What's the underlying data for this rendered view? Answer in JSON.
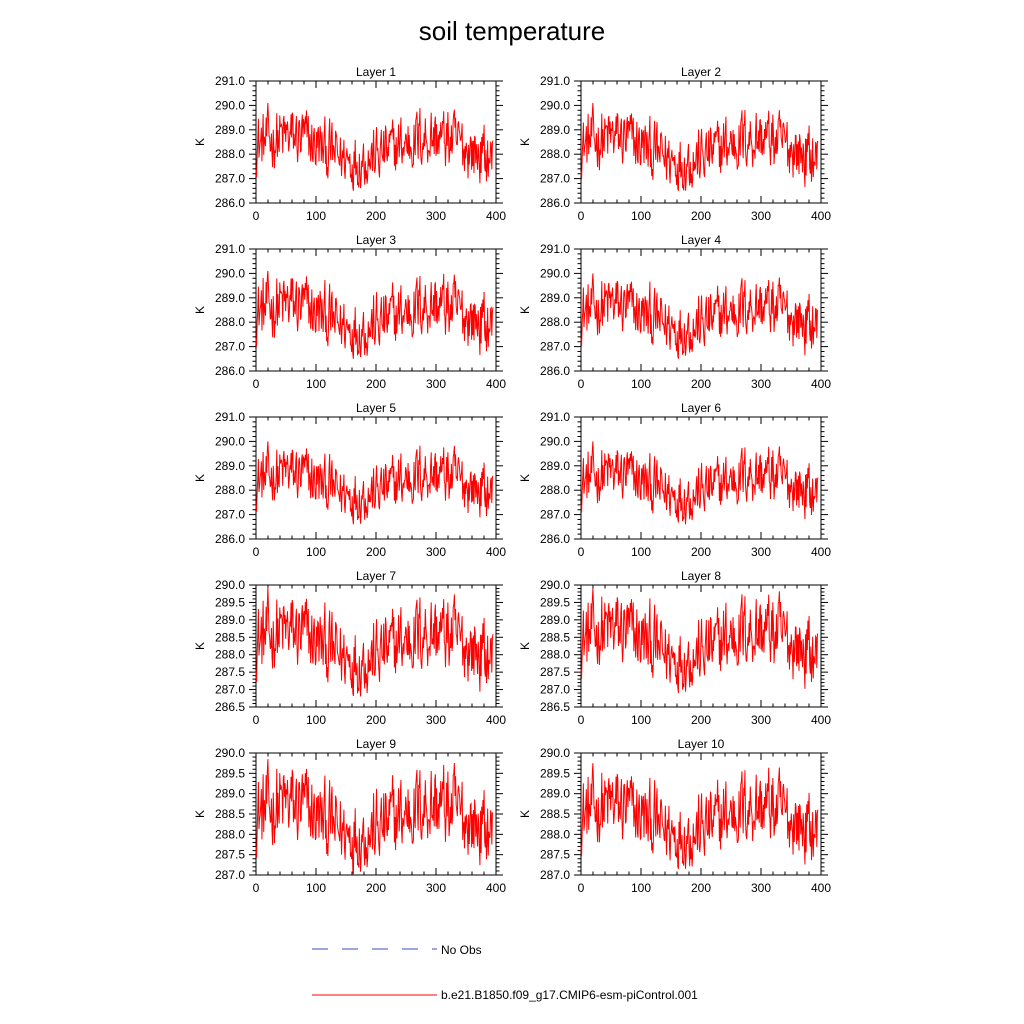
{
  "figure": {
    "title": "soil temperature"
  },
  "colors": {
    "series": "#ff0000",
    "obs": "#3b4cc0",
    "axis": "#000000"
  },
  "legend": {
    "entries": [
      {
        "label": "No Obs",
        "style": "dashed",
        "color": "#3b4cc0"
      },
      {
        "label": "b.e21.B1850.f09_g17.CMIP6-esm-piControl.001",
        "style": "solid",
        "color": "#ff0000"
      }
    ]
  },
  "chart_data": [
    {
      "type": "line",
      "title": "Layer 1",
      "ylabel": "K",
      "xlim": [
        0,
        400
      ],
      "xticks": [
        0,
        100,
        200,
        300,
        400
      ],
      "ylim": [
        286.0,
        291.0
      ],
      "yticks": [
        286.0,
        287.0,
        288.0,
        289.0,
        290.0,
        291.0
      ],
      "ytick_labels": [
        "286.0",
        "287.0",
        "288.0",
        "289.0",
        "290.0",
        "291.0"
      ],
      "n_points": 400,
      "mean": 288.3,
      "min": 286.5,
      "max": 290.1,
      "series": [
        {
          "name": "b.e21.B1850.f09_g17.CMIP6-esm-piControl.001",
          "color": "#ff0000"
        }
      ]
    },
    {
      "type": "line",
      "title": "Layer 2",
      "ylabel": "K",
      "xlim": [
        0,
        400
      ],
      "xticks": [
        0,
        100,
        200,
        300,
        400
      ],
      "ylim": [
        286.0,
        291.0
      ],
      "yticks": [
        286.0,
        287.0,
        288.0,
        289.0,
        290.0,
        291.0
      ],
      "ytick_labels": [
        "286.0",
        "287.0",
        "288.0",
        "289.0",
        "290.0",
        "291.0"
      ],
      "n_points": 400,
      "mean": 288.3,
      "min": 286.5,
      "max": 290.1,
      "series": [
        {
          "name": "b.e21.B1850.f09_g17.CMIP6-esm-piControl.001",
          "color": "#ff0000"
        }
      ]
    },
    {
      "type": "line",
      "title": "Layer 3",
      "ylabel": "K",
      "xlim": [
        0,
        400
      ],
      "xticks": [
        0,
        100,
        200,
        300,
        400
      ],
      "ylim": [
        286.0,
        291.0
      ],
      "yticks": [
        286.0,
        287.0,
        288.0,
        289.0,
        290.0,
        291.0
      ],
      "ytick_labels": [
        "286.0",
        "287.0",
        "288.0",
        "289.0",
        "290.0",
        "291.0"
      ],
      "n_points": 400,
      "mean": 288.3,
      "min": 286.5,
      "max": 290.1,
      "series": [
        {
          "name": "b.e21.B1850.f09_g17.CMIP6-esm-piControl.001",
          "color": "#ff0000"
        }
      ]
    },
    {
      "type": "line",
      "title": "Layer 4",
      "ylabel": "K",
      "xlim": [
        0,
        400
      ],
      "xticks": [
        0,
        100,
        200,
        300,
        400
      ],
      "ylim": [
        286.0,
        291.0
      ],
      "yticks": [
        286.0,
        287.0,
        288.0,
        289.0,
        290.0,
        291.0
      ],
      "ytick_labels": [
        "286.0",
        "287.0",
        "288.0",
        "289.0",
        "290.0",
        "291.0"
      ],
      "n_points": 400,
      "mean": 288.3,
      "min": 286.5,
      "max": 290.0,
      "series": [
        {
          "name": "b.e21.B1850.f09_g17.CMIP6-esm-piControl.001",
          "color": "#ff0000"
        }
      ]
    },
    {
      "type": "line",
      "title": "Layer 5",
      "ylabel": "K",
      "xlim": [
        0,
        400
      ],
      "xticks": [
        0,
        100,
        200,
        300,
        400
      ],
      "ylim": [
        286.0,
        291.0
      ],
      "yticks": [
        286.0,
        287.0,
        288.0,
        289.0,
        290.0,
        291.0
      ],
      "ytick_labels": [
        "286.0",
        "287.0",
        "288.0",
        "289.0",
        "290.0",
        "291.0"
      ],
      "n_points": 400,
      "mean": 288.3,
      "min": 286.6,
      "max": 290.0,
      "series": [
        {
          "name": "b.e21.B1850.f09_g17.CMIP6-esm-piControl.001",
          "color": "#ff0000"
        }
      ]
    },
    {
      "type": "line",
      "title": "Layer 6",
      "ylabel": "K",
      "xlim": [
        0,
        400
      ],
      "xticks": [
        0,
        100,
        200,
        300,
        400
      ],
      "ylim": [
        286.0,
        291.0
      ],
      "yticks": [
        286.0,
        287.0,
        288.0,
        289.0,
        290.0,
        291.0
      ],
      "ytick_labels": [
        "286.0",
        "287.0",
        "288.0",
        "289.0",
        "290.0",
        "291.0"
      ],
      "n_points": 400,
      "mean": 288.3,
      "min": 286.6,
      "max": 290.0,
      "series": [
        {
          "name": "b.e21.B1850.f09_g17.CMIP6-esm-piControl.001",
          "color": "#ff0000"
        }
      ]
    },
    {
      "type": "line",
      "title": "Layer 7",
      "ylabel": "K",
      "xlim": [
        0,
        400
      ],
      "xticks": [
        0,
        100,
        200,
        300,
        400
      ],
      "ylim": [
        286.5,
        290.0
      ],
      "yticks": [
        286.5,
        287.0,
        287.5,
        288.0,
        288.5,
        289.0,
        289.5,
        290.0
      ],
      "ytick_labels": [
        "286.5",
        "287.0",
        "287.5",
        "288.0",
        "288.5",
        "289.0",
        "289.5",
        "290.0"
      ],
      "n_points": 400,
      "mean": 288.3,
      "min": 286.8,
      "max": 289.95,
      "series": [
        {
          "name": "b.e21.B1850.f09_g17.CMIP6-esm-piControl.001",
          "color": "#ff0000"
        }
      ]
    },
    {
      "type": "line",
      "title": "Layer 8",
      "ylabel": "K",
      "xlim": [
        0,
        400
      ],
      "xticks": [
        0,
        100,
        200,
        300,
        400
      ],
      "ylim": [
        286.5,
        290.0
      ],
      "yticks": [
        286.5,
        287.0,
        287.5,
        288.0,
        288.5,
        289.0,
        289.5,
        290.0
      ],
      "ytick_labels": [
        "286.5",
        "287.0",
        "287.5",
        "288.0",
        "288.5",
        "289.0",
        "289.5",
        "290.0"
      ],
      "n_points": 400,
      "mean": 288.35,
      "min": 286.9,
      "max": 289.9,
      "series": [
        {
          "name": "b.e21.B1850.f09_g17.CMIP6-esm-piControl.001",
          "color": "#ff0000"
        }
      ]
    },
    {
      "type": "line",
      "title": "Layer 9",
      "ylabel": "K",
      "xlim": [
        0,
        400
      ],
      "xticks": [
        0,
        100,
        200,
        300,
        400
      ],
      "ylim": [
        287.0,
        290.0
      ],
      "yticks": [
        287.0,
        287.5,
        288.0,
        288.5,
        289.0,
        289.5,
        290.0
      ],
      "ytick_labels": [
        "287.0",
        "287.5",
        "288.0",
        "288.5",
        "289.0",
        "289.5",
        "290.0"
      ],
      "n_points": 400,
      "mean": 288.4,
      "min": 287.0,
      "max": 289.85,
      "series": [
        {
          "name": "b.e21.B1850.f09_g17.CMIP6-esm-piControl.001",
          "color": "#ff0000"
        }
      ]
    },
    {
      "type": "line",
      "title": "Layer 10",
      "ylabel": "K",
      "xlim": [
        0,
        400
      ],
      "xticks": [
        0,
        100,
        200,
        300,
        400
      ],
      "ylim": [
        287.0,
        290.0
      ],
      "yticks": [
        287.0,
        287.5,
        288.0,
        288.5,
        289.0,
        289.5,
        290.0
      ],
      "ytick_labels": [
        "287.0",
        "287.5",
        "288.0",
        "288.5",
        "289.0",
        "289.5",
        "290.0"
      ],
      "n_points": 400,
      "mean": 288.4,
      "min": 287.15,
      "max": 289.75,
      "series": [
        {
          "name": "b.e21.B1850.f09_g17.CMIP6-esm-piControl.001",
          "color": "#ff0000"
        }
      ]
    }
  ]
}
